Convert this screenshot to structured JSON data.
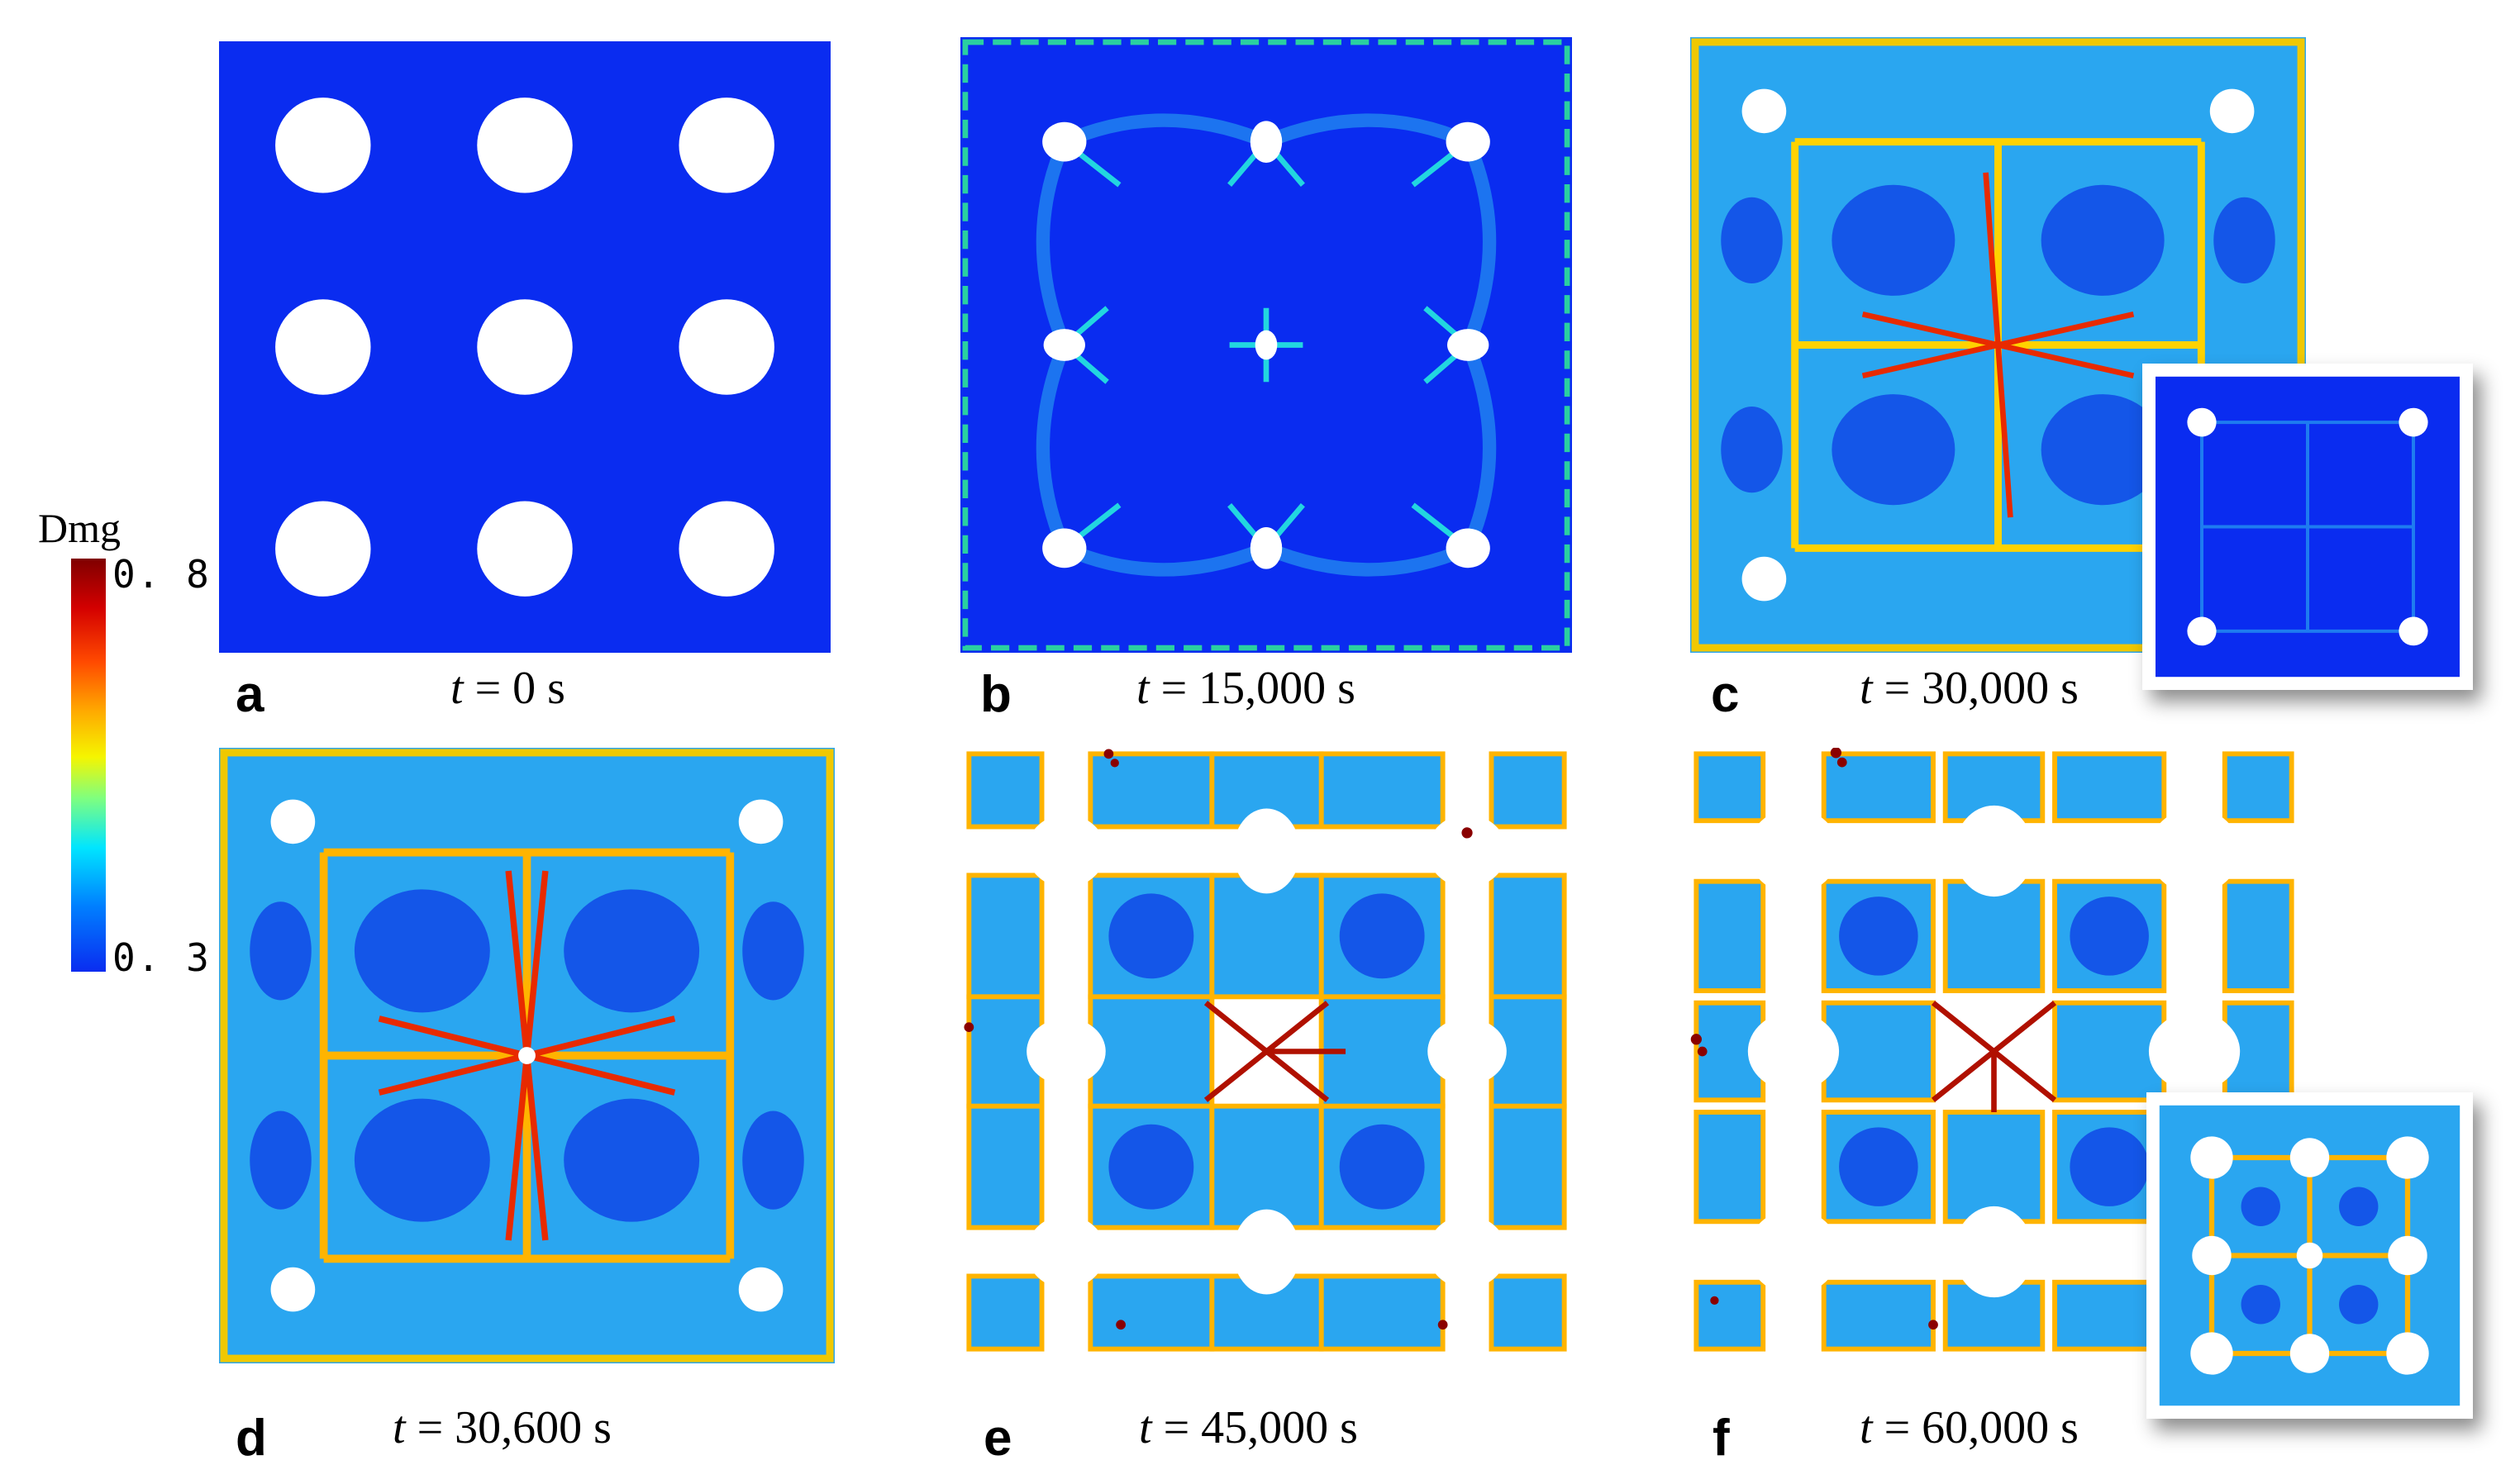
{
  "colorbar": {
    "title": "Dmg",
    "max_label": "0. 8",
    "min_label": "0. 3",
    "max_value": 0.8,
    "min_value": 0.3,
    "colors": [
      "#7f0000",
      "#ff4a00",
      "#f5f500",
      "#00e5ff",
      "#0a2cf0"
    ]
  },
  "panels": [
    {
      "id": "a",
      "letter": "a",
      "time_var": "t",
      "time_eq": " = 0 s",
      "has_inset": false
    },
    {
      "id": "b",
      "letter": "b",
      "time_var": "t",
      "time_eq": " = 15,000 s",
      "has_inset": false
    },
    {
      "id": "c",
      "letter": "c",
      "time_var": "t",
      "time_eq": " = 30,000 s",
      "has_inset": true
    },
    {
      "id": "d",
      "letter": "d",
      "time_var": "t",
      "time_eq": " = 30,600 s",
      "has_inset": false
    },
    {
      "id": "e",
      "letter": "e",
      "time_var": "t",
      "time_eq": " = 45,000 s",
      "has_inset": false
    },
    {
      "id": "f",
      "letter": "f",
      "time_var": "t",
      "time_eq": " = 60,000 s",
      "has_inset": true
    }
  ]
}
